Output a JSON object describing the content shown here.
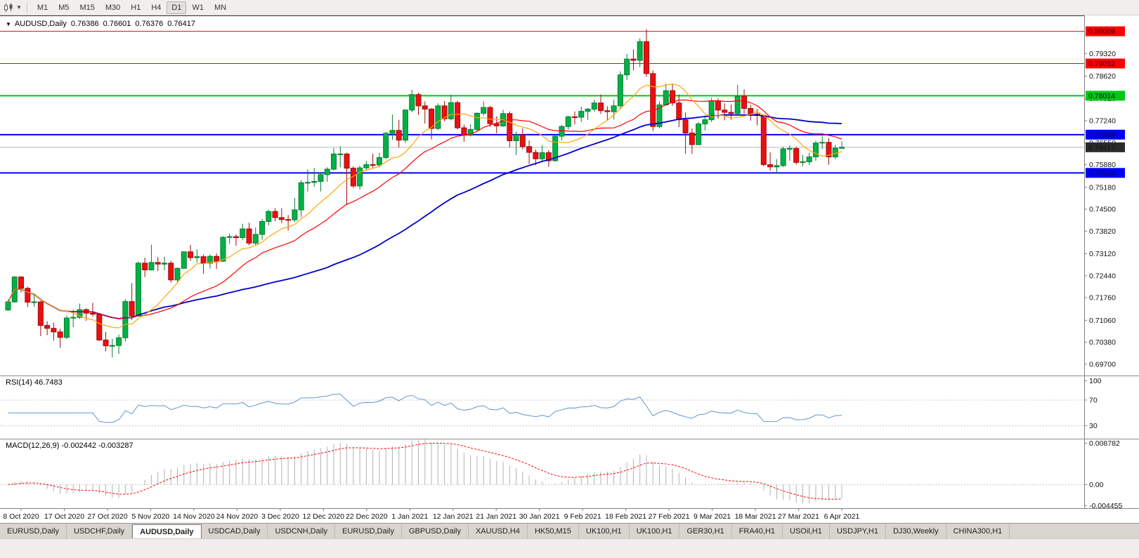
{
  "toolbar": {
    "timeframes": [
      "M1",
      "M5",
      "M15",
      "M30",
      "H1",
      "H4",
      "D1",
      "W1",
      "MN"
    ],
    "active_timeframe": "D1"
  },
  "icons": {
    "collapse_arrow": "▼",
    "dropdown_caret": "▼"
  },
  "chart_header": {
    "symbol": "AUDUSD,Daily",
    "open": "0.76386",
    "high": "0.76601",
    "low": "0.76376",
    "close": "0.76417"
  },
  "price_axis": {
    "ticks": [
      "0.79320",
      "0.78620",
      "0.77920",
      "0.77240",
      "0.76550",
      "0.75880",
      "0.75180",
      "0.74500",
      "0.73820",
      "0.73120",
      "0.72440",
      "0.71760",
      "0.71060",
      "0.70380",
      "0.69700"
    ]
  },
  "levels": [
    {
      "text": "0.80009",
      "value": 0.80009,
      "color": "#ff0000",
      "width": 1
    },
    {
      "text": "0.79012",
      "value": 0.79012,
      "color": "#ff0000",
      "width": 1
    },
    {
      "text": "0.78014",
      "value": 0.78014,
      "color": "#00c818",
      "width": 2
    },
    {
      "text": "0.76809",
      "value": 0.76809,
      "color": "#0000ff",
      "width": 2
    },
    {
      "text": "0.75624",
      "value": 0.75624,
      "color": "#0000ff",
      "width": 2
    }
  ],
  "current_price": {
    "text": "0.76417",
    "value": 0.76417,
    "badge_color": "#2b2b2b",
    "line_color": "#b8b8b8"
  },
  "date_axis": {
    "labels": [
      "8 Oct 2020",
      "17 Oct 2020",
      "27 Oct 2020",
      "5 Nov 2020",
      "14 Nov 2020",
      "24 Nov 2020",
      "3 Dec 2020",
      "12 Dec 2020",
      "22 Dec 2020",
      "1 Jan 2021",
      "12 Jan 2021",
      "21 Jan 2021",
      "30 Jan 2021",
      "9 Feb 2021",
      "18 Feb 2021",
      "27 Feb 2021",
      "9 Mar 2021",
      "18 Mar 2021",
      "27 Mar 2021",
      "6 Apr 2021"
    ]
  },
  "indicators": {
    "rsi": {
      "name": "RSI(14)",
      "value": "46.7483",
      "period": 14,
      "levels": [
        "100",
        "70",
        "30"
      ],
      "dashed_levels": [
        70,
        30
      ],
      "range": [
        10,
        107
      ]
    },
    "macd": {
      "name": "MACD(12,26,9)",
      "main_value": "-0.002442",
      "signal_value": "-0.003287",
      "fast": 12,
      "slow": 26,
      "signal": 9,
      "axis_labels": [
        {
          "text": "0.008782",
          "value": 0.008782
        },
        {
          "text": "0.00",
          "value": 0
        },
        {
          "text": "-0.004455",
          "value": -0.004455
        }
      ],
      "range": [
        -0.005,
        0.0096
      ]
    }
  },
  "colors": {
    "candle_up": "#00b145",
    "candle_up_edge": "#067d33",
    "candle_down": "#ea1010",
    "candle_down_edge": "#a30a0a",
    "rsi_line": "#5e97d0",
    "macd_hist": "#b2b2b2",
    "macd_signal": "#ff0000",
    "grid_dash": "#c8c8c8",
    "axis_line": "#808080",
    "separator": "#8c8c8c",
    "window_border": "#3c3c3c"
  },
  "chart_data": {
    "type": "candlestick",
    "title": "AUDUSD,Daily",
    "symbol": "AUDUSD",
    "timeframe": "Daily",
    "price_range": [
      0.6935,
      0.805
    ],
    "moving_averages": [
      {
        "name": "SMA-fast",
        "period": 10,
        "color": "#ffa500",
        "width": 1.2
      },
      {
        "name": "SMA-medium",
        "period": 20,
        "color": "#ff0000",
        "width": 1.2
      },
      {
        "name": "SMA-slow",
        "period": 50,
        "color": "#0000cc",
        "width": 1.8
      }
    ],
    "candles": [
      [
        0.7138,
        0.717,
        0.7135,
        0.7163
      ],
      [
        0.7163,
        0.7243,
        0.716,
        0.724
      ],
      [
        0.724,
        0.7243,
        0.7192,
        0.7205
      ],
      [
        0.7205,
        0.721,
        0.7147,
        0.7162
      ],
      [
        0.7162,
        0.7185,
        0.7148,
        0.7163
      ],
      [
        0.7163,
        0.7166,
        0.7057,
        0.709
      ],
      [
        0.709,
        0.7103,
        0.706,
        0.7081
      ],
      [
        0.7081,
        0.7099,
        0.7043,
        0.707
      ],
      [
        0.707,
        0.708,
        0.7021,
        0.7053
      ],
      [
        0.7053,
        0.712,
        0.7048,
        0.7113
      ],
      [
        0.7113,
        0.7139,
        0.7085,
        0.7115
      ],
      [
        0.7115,
        0.7158,
        0.711,
        0.7139
      ],
      [
        0.7139,
        0.7144,
        0.7104,
        0.7128
      ],
      [
        0.7128,
        0.716,
        0.7118,
        0.7125
      ],
      [
        0.7125,
        0.7128,
        0.7042,
        0.7045
      ],
      [
        0.7045,
        0.707,
        0.701,
        0.7027
      ],
      [
        0.7027,
        0.7049,
        0.6991,
        0.7028
      ],
      [
        0.7028,
        0.7062,
        0.7002,
        0.7052
      ],
      [
        0.7052,
        0.7171,
        0.704,
        0.7164
      ],
      [
        0.7164,
        0.7221,
        0.7107,
        0.7119
      ],
      [
        0.7119,
        0.7288,
        0.7117,
        0.7283
      ],
      [
        0.7283,
        0.73,
        0.724,
        0.7262
      ],
      [
        0.7262,
        0.734,
        0.726,
        0.7285
      ],
      [
        0.7285,
        0.7302,
        0.7258,
        0.728
      ],
      [
        0.728,
        0.7303,
        0.7261,
        0.7283
      ],
      [
        0.7283,
        0.729,
        0.7223,
        0.7231
      ],
      [
        0.7231,
        0.727,
        0.7221,
        0.7267
      ],
      [
        0.7267,
        0.732,
        0.7265,
        0.7318
      ],
      [
        0.7318,
        0.7339,
        0.729,
        0.73
      ],
      [
        0.73,
        0.7326,
        0.7285,
        0.7303
      ],
      [
        0.7303,
        0.731,
        0.725,
        0.7283
      ],
      [
        0.7283,
        0.731,
        0.7267,
        0.7304
      ],
      [
        0.7304,
        0.7313,
        0.7265,
        0.7289
      ],
      [
        0.7289,
        0.7366,
        0.7287,
        0.7363
      ],
      [
        0.7363,
        0.7374,
        0.7343,
        0.7365
      ],
      [
        0.7365,
        0.7372,
        0.7337,
        0.7362
      ],
      [
        0.7362,
        0.7405,
        0.7355,
        0.7389
      ],
      [
        0.7389,
        0.7408,
        0.7338,
        0.7345
      ],
      [
        0.7345,
        0.7393,
        0.7339,
        0.7372
      ],
      [
        0.7372,
        0.742,
        0.7355,
        0.7412
      ],
      [
        0.7412,
        0.7449,
        0.74,
        0.7443
      ],
      [
        0.7443,
        0.7453,
        0.7413,
        0.7424
      ],
      [
        0.7424,
        0.7453,
        0.7407,
        0.7418
      ],
      [
        0.7418,
        0.7432,
        0.7384,
        0.7417
      ],
      [
        0.7417,
        0.7485,
        0.741,
        0.7448
      ],
      [
        0.7448,
        0.754,
        0.7425,
        0.7532
      ],
      [
        0.7532,
        0.7573,
        0.7505,
        0.7533
      ],
      [
        0.7533,
        0.7578,
        0.752,
        0.7536
      ],
      [
        0.7536,
        0.7565,
        0.7505,
        0.7557
      ],
      [
        0.7557,
        0.758,
        0.7535,
        0.7574
      ],
      [
        0.7574,
        0.7639,
        0.757,
        0.7621
      ],
      [
        0.7621,
        0.7645,
        0.758,
        0.7621
      ],
      [
        0.7621,
        0.7625,
        0.7463,
        0.7577
      ],
      [
        0.7577,
        0.7583,
        0.7516,
        0.7522
      ],
      [
        0.7522,
        0.7585,
        0.751,
        0.7578
      ],
      [
        0.7578,
        0.76,
        0.757,
        0.7588
      ],
      [
        0.7588,
        0.7622,
        0.7578,
        0.7587
      ],
      [
        0.7587,
        0.7625,
        0.758,
        0.761
      ],
      [
        0.761,
        0.769,
        0.7605,
        0.7685
      ],
      [
        0.7685,
        0.7743,
        0.7665,
        0.7694
      ],
      [
        0.7694,
        0.7727,
        0.7642,
        0.7664
      ],
      [
        0.7664,
        0.776,
        0.7655,
        0.7757
      ],
      [
        0.7757,
        0.782,
        0.775,
        0.7805
      ],
      [
        0.7805,
        0.7811,
        0.7742,
        0.777
      ],
      [
        0.777,
        0.7784,
        0.7715,
        0.776
      ],
      [
        0.776,
        0.7763,
        0.7666,
        0.77
      ],
      [
        0.77,
        0.7778,
        0.7695,
        0.777
      ],
      [
        0.777,
        0.7785,
        0.7722,
        0.773
      ],
      [
        0.773,
        0.7805,
        0.7725,
        0.778
      ],
      [
        0.778,
        0.7786,
        0.7697,
        0.7702
      ],
      [
        0.7702,
        0.7712,
        0.7659,
        0.7679
      ],
      [
        0.7679,
        0.7713,
        0.7675,
        0.7697
      ],
      [
        0.7697,
        0.775,
        0.769,
        0.7747
      ],
      [
        0.7747,
        0.7784,
        0.774,
        0.7765
      ],
      [
        0.7765,
        0.777,
        0.7705,
        0.7715
      ],
      [
        0.7715,
        0.7738,
        0.7685,
        0.7708
      ],
      [
        0.7708,
        0.7758,
        0.7705,
        0.7746
      ],
      [
        0.7746,
        0.7753,
        0.7642,
        0.7662
      ],
      [
        0.7662,
        0.769,
        0.7618,
        0.768
      ],
      [
        0.768,
        0.7701,
        0.7635,
        0.7644
      ],
      [
        0.7644,
        0.7663,
        0.759,
        0.7626
      ],
      [
        0.7626,
        0.7635,
        0.7586,
        0.7606
      ],
      [
        0.7606,
        0.7649,
        0.7596,
        0.7625
      ],
      [
        0.7625,
        0.7633,
        0.7581,
        0.76
      ],
      [
        0.76,
        0.7682,
        0.7598,
        0.7676
      ],
      [
        0.7676,
        0.7711,
        0.7663,
        0.7706
      ],
      [
        0.7706,
        0.774,
        0.7697,
        0.7736
      ],
      [
        0.7736,
        0.7753,
        0.7713,
        0.7735
      ],
      [
        0.7735,
        0.7767,
        0.772,
        0.7753
      ],
      [
        0.7753,
        0.7763,
        0.7727,
        0.776
      ],
      [
        0.776,
        0.7789,
        0.7752,
        0.7779
      ],
      [
        0.7779,
        0.7805,
        0.7745,
        0.7755
      ],
      [
        0.7755,
        0.7769,
        0.7724,
        0.7752
      ],
      [
        0.7752,
        0.7789,
        0.7728,
        0.777
      ],
      [
        0.777,
        0.7877,
        0.776,
        0.7866
      ],
      [
        0.7866,
        0.7931,
        0.785,
        0.7915
      ],
      [
        0.7915,
        0.7945,
        0.788,
        0.7911
      ],
      [
        0.7911,
        0.7979,
        0.789,
        0.7969
      ],
      [
        0.7969,
        0.8007,
        0.786,
        0.787
      ],
      [
        0.787,
        0.788,
        0.7692,
        0.7706
      ],
      [
        0.7706,
        0.7784,
        0.77,
        0.7773
      ],
      [
        0.7773,
        0.7838,
        0.777,
        0.7817
      ],
      [
        0.7817,
        0.7837,
        0.777,
        0.7779
      ],
      [
        0.7779,
        0.7805,
        0.7704,
        0.7727
      ],
      [
        0.7727,
        0.775,
        0.7622,
        0.7686
      ],
      [
        0.7686,
        0.77,
        0.7621,
        0.765
      ],
      [
        0.765,
        0.772,
        0.7648,
        0.7714
      ],
      [
        0.7714,
        0.774,
        0.7694,
        0.7727
      ],
      [
        0.7727,
        0.7795,
        0.772,
        0.7786
      ],
      [
        0.7786,
        0.7793,
        0.773,
        0.7757
      ],
      [
        0.7757,
        0.7778,
        0.7725,
        0.775
      ],
      [
        0.775,
        0.7774,
        0.7727,
        0.7746
      ],
      [
        0.7746,
        0.7835,
        0.774,
        0.78
      ],
      [
        0.78,
        0.7821,
        0.7745,
        0.7762
      ],
      [
        0.7762,
        0.7773,
        0.7724,
        0.7745
      ],
      [
        0.7745,
        0.776,
        0.771,
        0.774
      ],
      [
        0.774,
        0.7744,
        0.7583,
        0.7588
      ],
      [
        0.7588,
        0.7626,
        0.7569,
        0.7581
      ],
      [
        0.7581,
        0.7605,
        0.7562,
        0.7585
      ],
      [
        0.7585,
        0.7644,
        0.758,
        0.7637
      ],
      [
        0.7637,
        0.7648,
        0.76,
        0.7638
      ],
      [
        0.7638,
        0.7644,
        0.7588,
        0.7595
      ],
      [
        0.7595,
        0.7618,
        0.7583,
        0.7597
      ],
      [
        0.7597,
        0.7625,
        0.7587,
        0.7612
      ],
      [
        0.7612,
        0.7662,
        0.76,
        0.7655
      ],
      [
        0.7655,
        0.7677,
        0.7637,
        0.7657
      ],
      [
        0.7657,
        0.767,
        0.7588,
        0.7612
      ],
      [
        0.7612,
        0.7649,
        0.7605,
        0.7639
      ],
      [
        0.76386,
        0.76601,
        0.76376,
        0.76417
      ]
    ]
  },
  "bottom_tabs": {
    "active_index": 2,
    "tabs": [
      "EURUSD,Daily",
      "USDCHF,Daily",
      "AUDUSD,Daily",
      "USDCAD,Daily",
      "USDCNH,Daily",
      "EURUSD,Daily",
      "GBPUSD,Daily",
      "XAUUSD,H4",
      "HK50,M15",
      "UK100,H1",
      "UK100,H1",
      "GER30,H1",
      "FRA40,H1",
      "USOil,H1",
      "USDJPY,H1",
      "DJ30,Weekly",
      "CHINA300,H1"
    ]
  }
}
